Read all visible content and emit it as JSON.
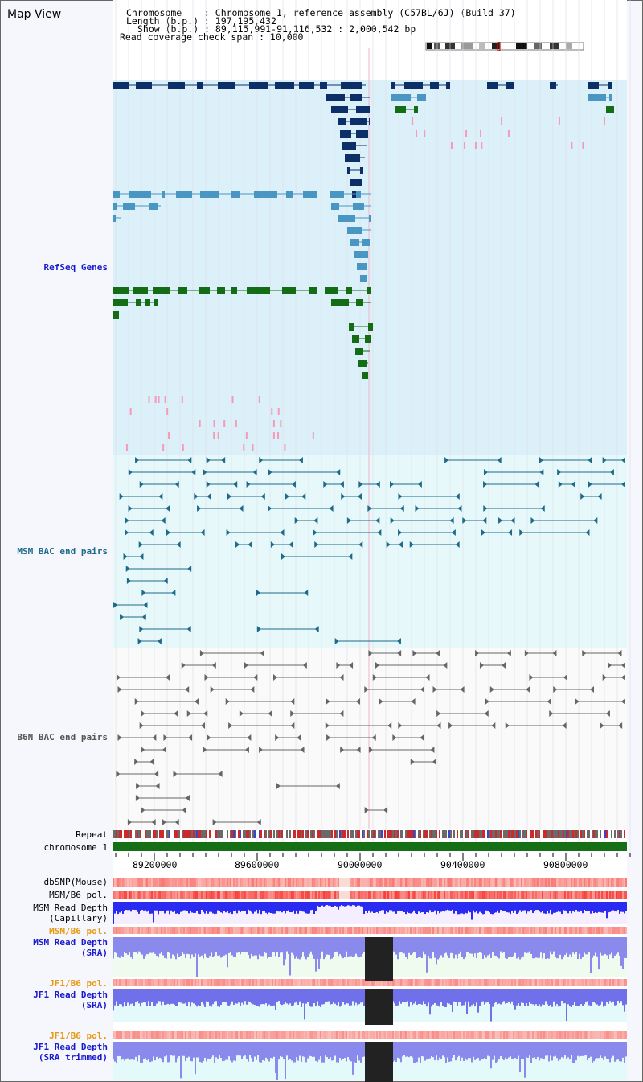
{
  "window": {
    "title": "Map View"
  },
  "header": {
    "chromosome": "Chromosome    : Chromosome 1, reference assembly (C57BL/6J) (Build 37)",
    "length": "Length (b.p.) : 197,195,432",
    "show": "Show (b.p.) : 89,115,991-91,116,532 : 2,000,542 bp",
    "coverage": "Read coverage check span : 10,000"
  },
  "tracks": {
    "refseq": "RefSeq Genes",
    "msm_bac": "MSM BAC end pairs",
    "b6n_bac": "B6N BAC end pairs",
    "repeat": "Repeat",
    "chromosome": "chromosome 1",
    "dbsnp": "dbSNP(Mouse)",
    "msm_b6_pol": "MSM/B6 pol.",
    "msm_depth_cap": "MSM Read Depth\n(Capillary)",
    "msm_b6_pol_sra": "MSM/B6 pol.",
    "msm_depth_sra": "MSM Read Depth\n(SRA)",
    "jf1_b6_pol": "JF1/B6 pol.",
    "jf1_depth_sra": "JF1 Read Depth\n(SRA)",
    "jf1_b6_pol2": "JF1/B6 pol.",
    "jf1_depth_trim": "JF1 Read Depth\n(SRA trimmed)"
  },
  "axis": {
    "ticks": [
      "89200000",
      "89600000",
      "90000000",
      "90400000",
      "90800000"
    ]
  },
  "colors": {
    "refseq_bg": "#dcf0fa",
    "bac_bg": "#e6f8fa",
    "gene_navy": "#0b2f66",
    "gene_blue": "#4a96c2",
    "gene_green": "#146c14",
    "bac_msm": "#1d6a8a",
    "bac_b6n": "#666666",
    "chrom": "#157015",
    "depth_blue": "#2a2af0",
    "label_blue": "#1a1acc",
    "label_orange": "#e69a14"
  }
}
